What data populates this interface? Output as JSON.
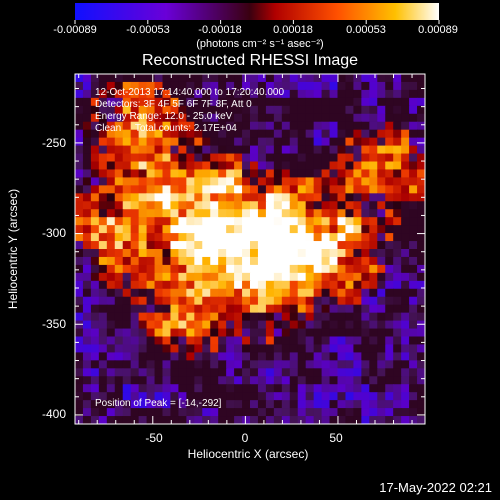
{
  "chart_data": {
    "type": "heatmap",
    "title": "Reconstructed RHESSI Image",
    "xlabel": "Heliocentric X (arcsec)",
    "ylabel": "Heliocentric Y (arcsec)",
    "xlim": [
      -92,
      97
    ],
    "ylim": [
      -405,
      -212
    ],
    "xticks": [
      "-50",
      "0",
      "50"
    ],
    "xtick_values": [
      -50,
      0,
      50
    ],
    "yticks": [
      "-250",
      "-300",
      "-350",
      "-400"
    ],
    "ytick_values": [
      -250,
      -300,
      -350,
      -400
    ],
    "colorbar": {
      "ticks": [
        "-0.00089",
        "-0.00053",
        "-0.00018",
        "0.00018",
        "0.00053",
        "0.00089"
      ],
      "units": "(photons cm⁻² s⁻¹ asec⁻²)",
      "colors": [
        "#1010ff",
        "#6a00d8",
        "#8a0030",
        "#e00000",
        "#ff8000",
        "#ffffff"
      ],
      "vmin": -0.00089,
      "vmax": 0.00089
    },
    "annotations": [
      "12-Oct-2013 17:14:40.000 to 17:20:40.000",
      "Detectors: 3F 4F 5F 6F 7F 8F, Att 0",
      "Energy Range: 12.0 - 25.0 keV",
      "Clean     Total counts: 2.17E+04"
    ],
    "peak_label": "Position of Peak = [-14,-292]",
    "peak": [
      -14,
      -292
    ],
    "emission_sources": [
      {
        "x": -14,
        "y": -292,
        "amp": 1.0
      },
      {
        "x": 22,
        "y": -305,
        "amp": 0.85
      },
      {
        "x": -45,
        "y": -275,
        "amp": 0.6
      },
      {
        "x": 5,
        "y": -330,
        "amp": 0.55
      },
      {
        "x": -30,
        "y": -340,
        "amp": 0.5
      },
      {
        "x": 45,
        "y": -310,
        "amp": 0.6
      },
      {
        "x": -70,
        "y": -300,
        "amp": 0.45
      },
      {
        "x": 75,
        "y": -265,
        "amp": 0.4
      },
      {
        "x": -60,
        "y": -240,
        "amp": 0.4
      }
    ]
  },
  "footer": {
    "timestamp": "17-May-2022 02:21"
  }
}
